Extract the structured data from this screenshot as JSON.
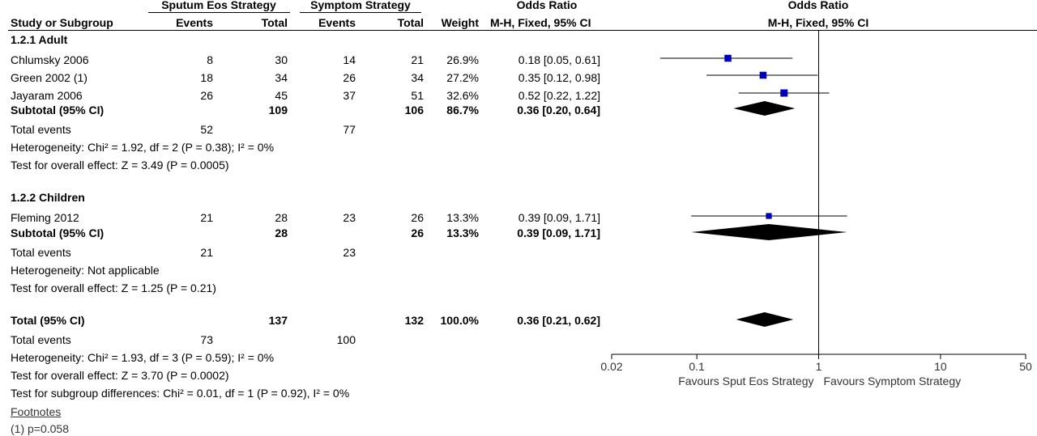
{
  "header": {
    "group1": "Sputum Eos Strategy",
    "group2": "Symptom Strategy",
    "or_title_left": "Odds Ratio",
    "or_title_right": "Odds Ratio",
    "col_study": "Study or Subgroup",
    "col_events1": "Events",
    "col_total1": "Total",
    "col_events2": "Events",
    "col_total2": "Total",
    "col_weight": "Weight",
    "col_mh_left": "M-H, Fixed, 95% CI",
    "col_mh_right": "M-H, Fixed, 95% CI"
  },
  "subgroups": [
    {
      "title": "1.2.1 Adult",
      "studies": [
        {
          "name": "Chlumsky 2006",
          "e1": "8",
          "t1": "30",
          "e2": "14",
          "t2": "21",
          "weight": "26.9%",
          "ci": "0.18 [0.05, 0.61]"
        },
        {
          "name": "Green 2002 (1)",
          "e1": "18",
          "t1": "34",
          "e2": "26",
          "t2": "34",
          "weight": "27.2%",
          "ci": "0.35 [0.12, 0.98]"
        },
        {
          "name": "Jayaram 2006",
          "e1": "26",
          "t1": "45",
          "e2": "37",
          "t2": "51",
          "weight": "32.6%",
          "ci": "0.52 [0.22, 1.22]"
        }
      ],
      "subtotal": {
        "label": "Subtotal (95% CI)",
        "t1": "109",
        "t2": "106",
        "weight": "86.7%",
        "ci": "0.36 [0.20, 0.64]"
      },
      "total_events": {
        "label": "Total events",
        "e1": "52",
        "e2": "77"
      },
      "heterogeneity": "Heterogeneity: Chi² = 1.92, df = 2 (P = 0.38); I² = 0%",
      "overall": "Test for overall effect: Z = 3.49 (P = 0.0005)"
    },
    {
      "title": "1.2.2 Children",
      "studies": [
        {
          "name": "Fleming 2012",
          "e1": "21",
          "t1": "28",
          "e2": "23",
          "t2": "26",
          "weight": "13.3%",
          "ci": "0.39 [0.09, 1.71]"
        }
      ],
      "subtotal": {
        "label": "Subtotal (95% CI)",
        "t1": "28",
        "t2": "26",
        "weight": "13.3%",
        "ci": "0.39 [0.09, 1.71]"
      },
      "total_events": {
        "label": "Total events",
        "e1": "21",
        "e2": "23"
      },
      "heterogeneity": "Heterogeneity: Not applicable",
      "overall": "Test for overall effect: Z = 1.25 (P = 0.21)"
    }
  ],
  "total": {
    "label": "Total (95% CI)",
    "t1": "137",
    "t2": "132",
    "weight": "100.0%",
    "ci": "0.36 [0.21, 0.62]"
  },
  "total_events": {
    "label": "Total events",
    "e1": "73",
    "e2": "100"
  },
  "total_heterogeneity": "Heterogeneity: Chi² = 1.93, df = 3 (P = 0.59); I² = 0%",
  "total_overall": "Test for overall effect: Z = 3.70 (P = 0.0002)",
  "subgroup_diff": "Test for subgroup differences: Chi² = 0.01, df = 1 (P = 0.92), I² = 0%",
  "footnotes": {
    "title": "Footnotes",
    "items": [
      "(1) p=0.058"
    ]
  },
  "chart_data": {
    "type": "scatter",
    "scale": "log",
    "xlim": [
      0.02,
      50
    ],
    "xticks": [
      "0.02",
      "0.1",
      "1",
      "10",
      "50"
    ],
    "xlabel_left": "Favours Sput Eos Strategy",
    "xlabel_right": "Favours Symptom Strategy",
    "studies": [
      {
        "name": "Chlumsky 2006",
        "or": 0.18,
        "lo": 0.05,
        "hi": 0.61,
        "weight": 26.9
      },
      {
        "name": "Green 2002 (1)",
        "or": 0.35,
        "lo": 0.12,
        "hi": 0.98,
        "weight": 27.2
      },
      {
        "name": "Jayaram 2006",
        "or": 0.52,
        "lo": 0.22,
        "hi": 1.22,
        "weight": 32.6
      },
      {
        "name": "Fleming 2012",
        "or": 0.39,
        "lo": 0.09,
        "hi": 1.71,
        "weight": 13.3
      }
    ],
    "diamonds": [
      {
        "name": "Subtotal 1.2.1 Adult",
        "or": 0.36,
        "lo": 0.2,
        "hi": 0.64
      },
      {
        "name": "Subtotal 1.2.2 Children",
        "or": 0.39,
        "lo": 0.09,
        "hi": 1.71
      },
      {
        "name": "Total (95% CI)",
        "or": 0.36,
        "lo": 0.21,
        "hi": 0.62
      }
    ],
    "colors": {
      "marker": "#0000b4",
      "line": "#000000"
    }
  }
}
